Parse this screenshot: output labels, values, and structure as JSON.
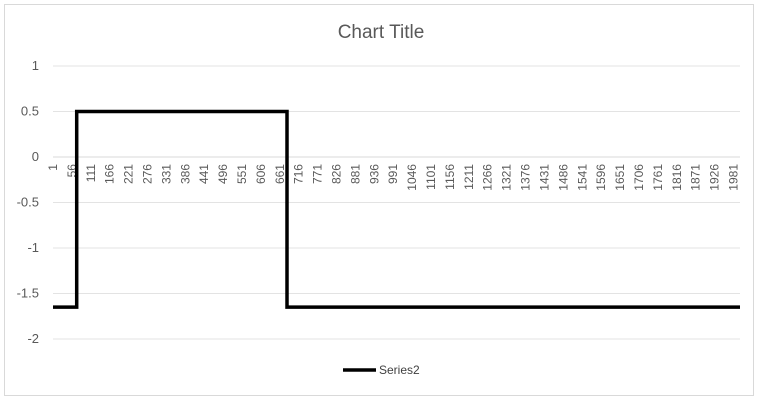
{
  "chart_data": {
    "type": "line",
    "title": "Chart Title",
    "xlabel": "",
    "ylabel": "",
    "ylim": [
      -2,
      1
    ],
    "yticks": [
      1,
      0.5,
      0,
      -0.5,
      -1,
      -1.5,
      -2
    ],
    "ytick_labels": [
      "1",
      "0.5",
      "0",
      "-0.5",
      "-1",
      "-1.5",
      "-2"
    ],
    "xlim": [
      1,
      2000
    ],
    "xticks": [
      1,
      56,
      111,
      166,
      221,
      276,
      331,
      386,
      441,
      496,
      551,
      606,
      661,
      716,
      771,
      826,
      881,
      936,
      991,
      1046,
      1101,
      1156,
      1211,
      1266,
      1321,
      1376,
      1431,
      1486,
      1541,
      1596,
      1651,
      1706,
      1761,
      1816,
      1871,
      1926,
      1981
    ],
    "xtick_labels": [
      "1",
      "56",
      "111",
      "166",
      "221",
      "276",
      "331",
      "386",
      "441",
      "496",
      "551",
      "606",
      "661",
      "716",
      "771",
      "826",
      "881",
      "936",
      "991",
      "1046",
      "1101",
      "1156",
      "1211",
      "1266",
      "1321",
      "1376",
      "1431",
      "1486",
      "1541",
      "1596",
      "1651",
      "1706",
      "1761",
      "1816",
      "1871",
      "1926",
      "1981"
    ],
    "grid": true,
    "legend_position": "bottom",
    "series": [
      {
        "name": "Series2",
        "color": "#000000",
        "x": [
          1,
          70,
          70,
          682,
          682,
          2000
        ],
        "y": [
          -1.65,
          -1.65,
          0.5,
          0.5,
          -1.65,
          -1.65
        ]
      }
    ]
  }
}
